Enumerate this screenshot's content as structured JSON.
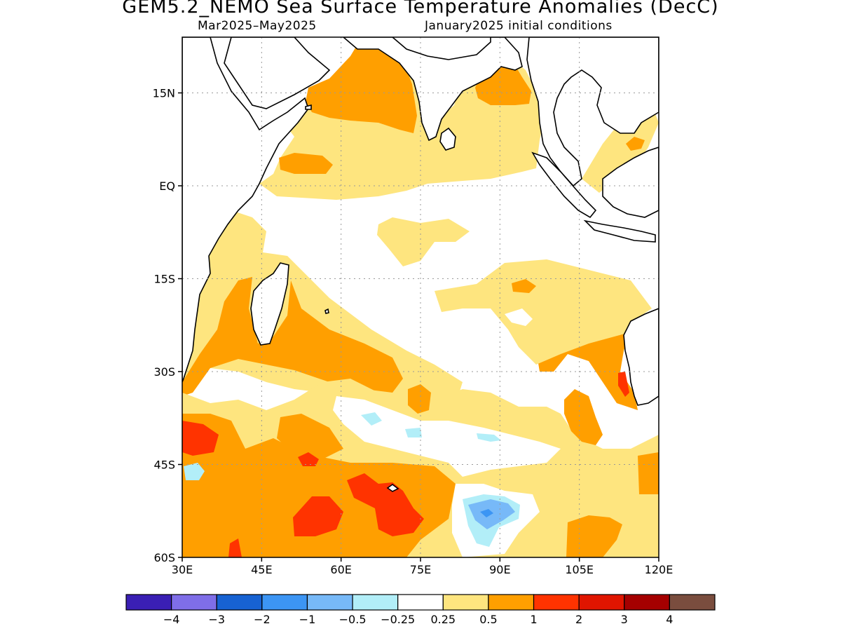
{
  "title": "GEM5.2_NEMO Sea Surface Temperature Anomalies (DecC)",
  "subtitle_left": "Mar2025–May2025",
  "subtitle_right": "January2025 initial conditions",
  "map": {
    "lon_range": [
      30,
      120
    ],
    "lat_range": [
      -60,
      24
    ],
    "lat_ticks": [
      {
        "value": 15,
        "label": "15N"
      },
      {
        "value": 0,
        "label": "EQ"
      },
      {
        "value": -15,
        "label": "15S"
      },
      {
        "value": -30,
        "label": "30S"
      },
      {
        "value": -45,
        "label": "45S"
      },
      {
        "value": -60,
        "label": "60S"
      }
    ],
    "lon_ticks": [
      {
        "value": 30,
        "label": "30E"
      },
      {
        "value": 45,
        "label": "45E"
      },
      {
        "value": 60,
        "label": "60E"
      },
      {
        "value": 75,
        "label": "75E"
      },
      {
        "value": 90,
        "label": "90E"
      },
      {
        "value": 105,
        "label": "105E"
      },
      {
        "value": 120,
        "label": "120E"
      }
    ],
    "grid": true
  },
  "colorbar": {
    "colors": [
      "#3a1fb4",
      "#7f6ee8",
      "#1762d2",
      "#3c95f4",
      "#77b9f8",
      "#b2eef8",
      "#ffffff",
      "#fee57f",
      "#ff9f00",
      "#ff3300",
      "#e01500",
      "#a50000",
      "#7a4d3e"
    ],
    "labels": [
      "−4",
      "−3",
      "−2",
      "−1",
      "−0.5",
      "−0.25",
      "0.25",
      "0.5",
      "1",
      "2",
      "3",
      "4"
    ]
  },
  "colors": {
    "ocean_white": "#ffffff",
    "light_yellow": "#fee57f",
    "orange": "#ff9f00",
    "red_orange": "#ff3300",
    "light_cyan": "#b2eef8",
    "light_blue": "#77b9f8",
    "mid_blue": "#3c95f4"
  }
}
